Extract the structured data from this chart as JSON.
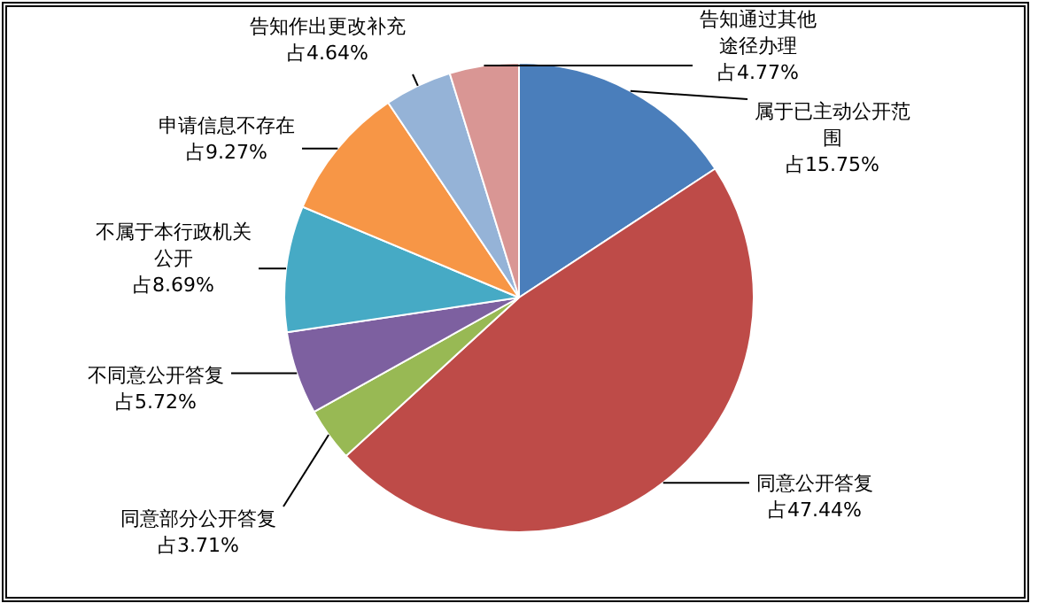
{
  "chart_data": {
    "type": "pie",
    "categories": [
      "属于已主动公开范围",
      "同意公开答复",
      "同意部分公开答复",
      "不同意公开答复",
      "不属于本行政机关公开",
      "申请信息不存在",
      "告知作出更改补充",
      "告知通过其他途径办理"
    ],
    "values": [
      15.75,
      47.44,
      3.71,
      5.72,
      8.69,
      9.27,
      4.64,
      4.77
    ],
    "value_labels": [
      "占15.75%",
      "占47.44%",
      "占3.71%",
      "占5.72%",
      "占8.69%",
      "占9.27%",
      "占4.64%",
      "占4.77%"
    ],
    "colors": [
      "#4a7ebb",
      "#be4b48",
      "#98b954",
      "#7d60a0",
      "#46aac5",
      "#f79646",
      "#95b3d7",
      "#d99694"
    ],
    "legend": false
  }
}
